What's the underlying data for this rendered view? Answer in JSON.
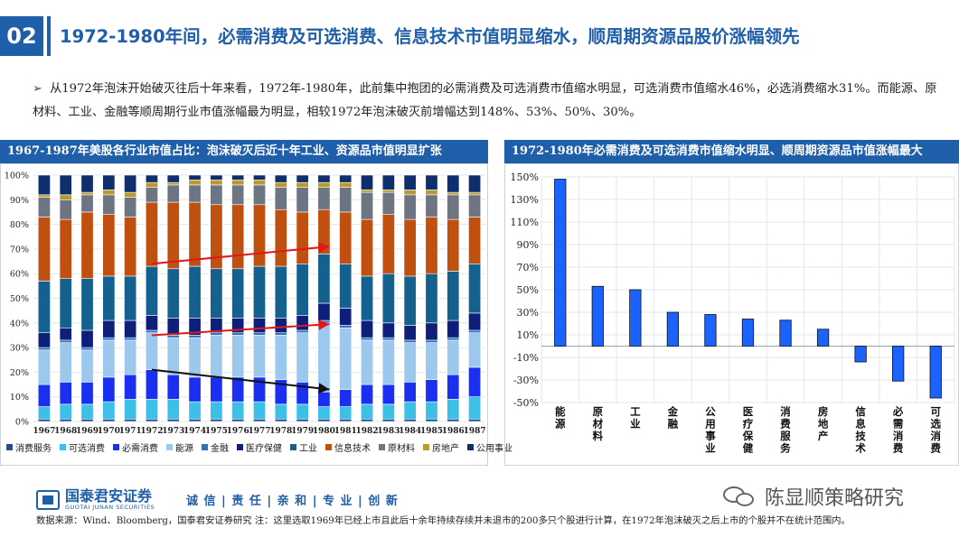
{
  "header": {
    "slide_number": "02",
    "title": "1972-1980年间，必需消费及可选消费、信息技术市值明显缩水，顺周期资源品股价涨幅领先"
  },
  "bullet": {
    "marker": "➢",
    "text": "从1972年泡沫开始破灭往后十年来看，1972年-1980年，此前集中抱团的必需消费及可选消费市值缩水明显，可选消费市值缩水46%，必选消费缩水31%。而能源、原材料、工业、金融等顺周期行业市值涨幅最为明显，相较1972年泡沫破灭前增幅达到148%、53%、50%、30%。"
  },
  "left_panel": {
    "title": "1967-1987年美股各行业市值占比：泡沫破灭后近十年工业、资源品市值明显扩张"
  },
  "right_panel": {
    "title": "1972-1980年必需消费及可选消费市值缩水明显、顺周期资源品市值涨幅最大"
  },
  "footer": {
    "brand_cn": "国泰君安证券",
    "brand_en": "GUOTAI JUNAN SECURITIES",
    "slogan": "诚 信 | 责 任 | 亲 和 | 专 业 | 创 新",
    "wechat_name": "陈显顺策略研究",
    "source": "数据来源：Wind、Bloomberg，国泰君安证券研究   注：这里选取1969年已经上市且此后十余年持续存续并未退市的200多只个股进行计算，在1972年泡沫破灭之后上市的个股并不在统计范围内。"
  },
  "chart_data": [
    {
      "type": "bar",
      "stacked": true,
      "percent": true,
      "categories": [
        "1967",
        "1968",
        "1969",
        "1970",
        "1971",
        "1972",
        "1973",
        "1974",
        "1975",
        "1976",
        "1977",
        "1978",
        "1979",
        "1980",
        "1981",
        "1982",
        "1983",
        "1984",
        "1985",
        "1986",
        "1987"
      ],
      "y_ticks": [
        "0%",
        "10%",
        "20%",
        "30%",
        "40%",
        "50%",
        "60%",
        "70%",
        "80%",
        "90%",
        "100%"
      ],
      "ylim": [
        0,
        100
      ],
      "grid": true,
      "legend_position": "bottom",
      "series": [
        {
          "name": "消费服务",
          "color": "#1f4e9c",
          "values": [
            1,
            1,
            1,
            1,
            1,
            1,
            1,
            1,
            1,
            1,
            1,
            1,
            1,
            1,
            1,
            1,
            1,
            1,
            1,
            1,
            1
          ]
        },
        {
          "name": "可选消费",
          "color": "#3cc0e8",
          "values": [
            5,
            6,
            6,
            7,
            8,
            8,
            8,
            7,
            7,
            7,
            7,
            6,
            6,
            5,
            5,
            6,
            6,
            7,
            7,
            8,
            9
          ]
        },
        {
          "name": "必需消费",
          "color": "#1a2ff0",
          "values": [
            9,
            9,
            9,
            10,
            10,
            12,
            10,
            10,
            10,
            10,
            10,
            10,
            9,
            6,
            7,
            8,
            8,
            8,
            9,
            10,
            12
          ]
        },
        {
          "name": "能源",
          "color": "#9cc8ee",
          "values": [
            14,
            16,
            13,
            15,
            14,
            15,
            15,
            16,
            17,
            17,
            17,
            18,
            20,
            28,
            25,
            18,
            18,
            16,
            15,
            14,
            14
          ]
        },
        {
          "name": "金融",
          "color": "#2f6fc4",
          "values": [
            1,
            1,
            1,
            1,
            1,
            1,
            1,
            1,
            1,
            1,
            1,
            1,
            1,
            1,
            1,
            1,
            1,
            1,
            1,
            1,
            1
          ]
        },
        {
          "name": "医疗保健",
          "color": "#0d1f7a",
          "values": [
            6,
            5,
            7,
            7,
            7,
            6,
            7,
            7,
            6,
            6,
            6,
            6,
            6,
            7,
            7,
            7,
            6,
            6,
            7,
            7,
            7
          ]
        },
        {
          "name": "工业",
          "color": "#14608f",
          "values": [
            21,
            20,
            21,
            18,
            18,
            20,
            20,
            21,
            20,
            20,
            21,
            21,
            21,
            20,
            18,
            18,
            20,
            20,
            20,
            20,
            20
          ]
        },
        {
          "name": "信息技术",
          "color": "#c0500f",
          "values": [
            26,
            24,
            27,
            25,
            24,
            26,
            27,
            26,
            26,
            26,
            25,
            23,
            21,
            18,
            21,
            23,
            24,
            23,
            23,
            21,
            19
          ]
        },
        {
          "name": "原材料",
          "color": "#6d7482",
          "values": [
            8,
            8,
            7,
            8,
            8,
            6,
            7,
            7,
            8,
            8,
            8,
            9,
            10,
            9,
            10,
            11,
            9,
            10,
            9,
            10,
            9
          ]
        },
        {
          "name": "房地产",
          "color": "#b89a2e",
          "values": [
            1,
            2,
            1,
            2,
            2,
            2,
            1,
            2,
            2,
            2,
            2,
            2,
            2,
            2,
            2,
            1,
            1,
            2,
            2,
            1,
            1
          ]
        },
        {
          "name": "公用事业",
          "color": "#0f2e6e",
          "values": [
            8,
            8,
            7,
            6,
            7,
            3,
            3,
            2,
            2,
            2,
            2,
            3,
            3,
            3,
            3,
            6,
            6,
            6,
            6,
            7,
            7
          ]
        }
      ]
    },
    {
      "type": "bar",
      "categories": [
        "能源",
        "原材料",
        "工业",
        "金融",
        "公用事业",
        "医疗保健",
        "消费服务",
        "房地产",
        "信息技术",
        "必需消费",
        "可选消费"
      ],
      "values": [
        148,
        53,
        50,
        30,
        28,
        24,
        23,
        15,
        -14,
        -31,
        -46
      ],
      "value_format": "percent",
      "y_ticks": [
        "-50%",
        "-30%",
        "-10%",
        "10%",
        "30%",
        "50%",
        "70%",
        "90%",
        "110%",
        "130%",
        "150%"
      ],
      "ylim": [
        -50,
        150
      ],
      "grid": true,
      "color": "#1a63ff"
    }
  ]
}
